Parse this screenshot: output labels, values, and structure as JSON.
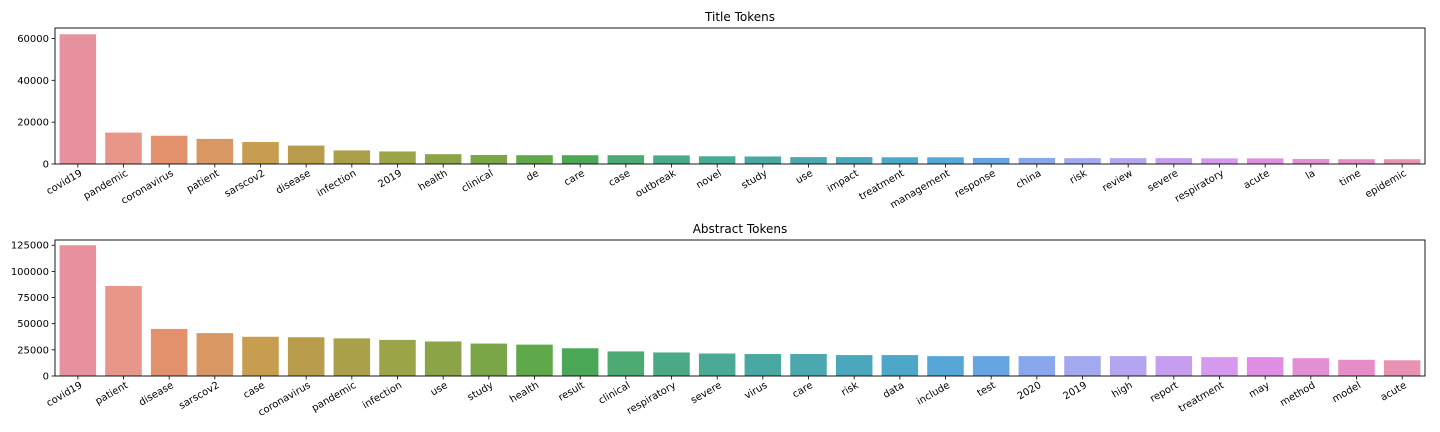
{
  "chart_data": [
    {
      "type": "bar",
      "title": "Title Tokens",
      "xlabel": "",
      "ylabel": "",
      "ylim": [
        0,
        65000
      ],
      "yticks": [
        0,
        20000,
        40000,
        60000
      ],
      "categories": [
        "covid19",
        "pandemic",
        "coronavirus",
        "patient",
        "sarscov2",
        "disease",
        "infection",
        "2019",
        "health",
        "clinical",
        "de",
        "care",
        "case",
        "outbreak",
        "novel",
        "study",
        "use",
        "impact",
        "treatment",
        "management",
        "response",
        "china",
        "risk",
        "review",
        "severe",
        "respiratory",
        "acute",
        "la",
        "time",
        "epidemic"
      ],
      "values": [
        62000,
        15000,
        13500,
        12000,
        10500,
        8800,
        6500,
        6000,
        4700,
        4300,
        4200,
        4200,
        4200,
        4100,
        3700,
        3600,
        3300,
        3300,
        3200,
        3200,
        2900,
        2900,
        2800,
        2800,
        2800,
        2700,
        2700,
        2400,
        2300,
        2300
      ]
    },
    {
      "type": "bar",
      "title": "Abstract Tokens",
      "xlabel": "",
      "ylabel": "",
      "ylim": [
        0,
        130000
      ],
      "yticks": [
        0,
        25000,
        50000,
        75000,
        100000,
        125000
      ],
      "categories": [
        "covid19",
        "patient",
        "disease",
        "sarscov2",
        "case",
        "coronavirus",
        "pandemic",
        "infection",
        "use",
        "study",
        "health",
        "result",
        "clinical",
        "respiratory",
        "severe",
        "virus",
        "care",
        "risk",
        "data",
        "include",
        "test",
        "2020",
        "2019",
        "high",
        "report",
        "treatment",
        "may",
        "method",
        "model",
        "acute"
      ],
      "values": [
        125000,
        86000,
        45000,
        41000,
        37500,
        37000,
        36000,
        34500,
        33000,
        31000,
        30000,
        26500,
        23500,
        22500,
        21500,
        21000,
        21000,
        20000,
        20000,
        19000,
        19000,
        19000,
        19000,
        19000,
        19000,
        18000,
        18000,
        17000,
        15500,
        15000
      ]
    }
  ],
  "palette": [
    "#e8919e",
    "#e8958a",
    "#e3906d",
    "#d99863",
    "#c79e4f",
    "#b89b4b",
    "#a9a049",
    "#9ba447",
    "#8ba447",
    "#7ba647",
    "#5fa94a",
    "#4ba856",
    "#4caa72",
    "#4aaa86",
    "#4aaa96",
    "#4aa8a3",
    "#4ba8af",
    "#4ba7bb",
    "#4ca7c9",
    "#56a6d7",
    "#66a5e2",
    "#89a8eb",
    "#a3a9ef",
    "#b5a4f0",
    "#c59ef0",
    "#d699ee",
    "#e08ee4",
    "#e48ed5",
    "#e68dc6",
    "#e791b3"
  ]
}
